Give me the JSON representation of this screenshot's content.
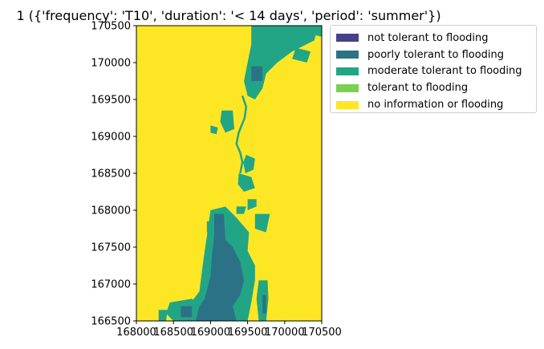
{
  "chart_data": {
    "type": "heatmap",
    "title": "1 ({'frequency': 'T10', 'duration': '< 14 days', 'period': 'summer'})",
    "xlabel": "",
    "ylabel": "",
    "xlim": [
      168000,
      170500
    ],
    "ylim": [
      166500,
      170500
    ],
    "xticks": [
      "168000",
      "168500",
      "169000",
      "169500",
      "170000",
      "170500"
    ],
    "yticks": [
      "170500",
      "170000",
      "169500",
      "169000",
      "168500",
      "168000",
      "167500",
      "167000",
      "166500"
    ],
    "grid": false,
    "legend_position": "outside-top-right",
    "categories": [
      {
        "label": "not tolerant to flooding",
        "color": "#46428a"
      },
      {
        "label": "poorly tolerant to flooding",
        "color": "#2c7286"
      },
      {
        "label": "moderate tolerant to flooding",
        "color": "#22a585"
      },
      {
        "label": "tolerant to flooding",
        "color": "#7ad151"
      },
      {
        "label": "no information or flooding",
        "color": "#fde725"
      }
    ],
    "regions": [
      {
        "category": 2,
        "points": [
          [
            169550,
            170500
          ],
          [
            170450,
            170500
          ],
          [
            170400,
            170300
          ],
          [
            170100,
            170150
          ],
          [
            169900,
            170000
          ],
          [
            169750,
            169850
          ],
          [
            169700,
            169650
          ],
          [
            169600,
            169500
          ],
          [
            169500,
            169550
          ],
          [
            169450,
            169750
          ],
          [
            169500,
            170000
          ],
          [
            169550,
            170250
          ]
        ]
      },
      {
        "category": 1,
        "points": [
          [
            169550,
            169950
          ],
          [
            169700,
            169950
          ],
          [
            169700,
            169750
          ],
          [
            169550,
            169750
          ]
        ]
      },
      {
        "category": 2,
        "points": [
          [
            170150,
            170200
          ],
          [
            170350,
            170150
          ],
          [
            170300,
            170000
          ],
          [
            170100,
            170050
          ]
        ]
      },
      {
        "category": 2,
        "points": [
          [
            170250,
            170500
          ],
          [
            170500,
            170500
          ],
          [
            170500,
            170350
          ],
          [
            170300,
            170400
          ]
        ]
      },
      {
        "category": 2,
        "points": [
          [
            169150,
            169350
          ],
          [
            169300,
            169350
          ],
          [
            169320,
            169100
          ],
          [
            169200,
            169050
          ],
          [
            169130,
            169200
          ]
        ]
      },
      {
        "category": 2,
        "points": [
          [
            169000,
            169150
          ],
          [
            169100,
            169120
          ],
          [
            169080,
            169030
          ],
          [
            169000,
            169050
          ]
        ]
      },
      {
        "category": 2,
        "points": [
          [
            169480,
            168750
          ],
          [
            169600,
            168700
          ],
          [
            169580,
            168550
          ],
          [
            169470,
            168500
          ],
          [
            169440,
            168650
          ]
        ]
      },
      {
        "category": 2,
        "points": [
          [
            169380,
            168500
          ],
          [
            169550,
            168450
          ],
          [
            169600,
            168300
          ],
          [
            169450,
            168250
          ],
          [
            169370,
            168350
          ]
        ]
      },
      {
        "category": 2,
        "points": [
          [
            169500,
            168150
          ],
          [
            169620,
            168150
          ],
          [
            169620,
            168050
          ],
          [
            169500,
            168000
          ]
        ]
      },
      {
        "category": 2,
        "points": [
          [
            169350,
            168050
          ],
          [
            169480,
            168050
          ],
          [
            169450,
            167950
          ],
          [
            169350,
            167950
          ]
        ]
      },
      {
        "category": 2,
        "points": [
          [
            169600,
            167950
          ],
          [
            169800,
            167950
          ],
          [
            169750,
            167700
          ],
          [
            169600,
            167750
          ]
        ]
      },
      {
        "category": 2,
        "points": [
          [
            169000,
            168000
          ],
          [
            169200,
            168050
          ],
          [
            169350,
            167900
          ],
          [
            169520,
            167700
          ],
          [
            169500,
            167450
          ],
          [
            169600,
            167250
          ],
          [
            169600,
            167050
          ],
          [
            169550,
            166750
          ],
          [
            169500,
            166500
          ],
          [
            168800,
            166500
          ],
          [
            168700,
            166700
          ],
          [
            168850,
            166900
          ],
          [
            168900,
            167300
          ],
          [
            168950,
            167650
          ]
        ]
      },
      {
        "category": 1,
        "points": [
          [
            169050,
            167950
          ],
          [
            169180,
            167950
          ],
          [
            169200,
            167600
          ],
          [
            169300,
            167500
          ],
          [
            169400,
            167300
          ],
          [
            169450,
            167050
          ],
          [
            169400,
            166850
          ],
          [
            169300,
            166700
          ],
          [
            169350,
            166500
          ],
          [
            168800,
            166500
          ],
          [
            168820,
            166650
          ],
          [
            168920,
            166800
          ],
          [
            169000,
            167100
          ],
          [
            169020,
            167400
          ],
          [
            169050,
            167650
          ]
        ]
      },
      {
        "category": 2,
        "points": [
          [
            169650,
            167050
          ],
          [
            169770,
            167050
          ],
          [
            169780,
            166800
          ],
          [
            169750,
            166500
          ],
          [
            169650,
            166500
          ],
          [
            169620,
            166800
          ]
        ]
      },
      {
        "category": 1,
        "points": [
          [
            169700,
            166850
          ],
          [
            169750,
            166850
          ],
          [
            169750,
            166600
          ],
          [
            169700,
            166600
          ]
        ]
      },
      {
        "category": 2,
        "points": [
          [
            168450,
            166750
          ],
          [
            168750,
            166800
          ],
          [
            168850,
            166700
          ],
          [
            168800,
            166500
          ],
          [
            168500,
            166500
          ],
          [
            168400,
            166600
          ]
        ]
      },
      {
        "category": 1,
        "points": [
          [
            168600,
            166700
          ],
          [
            168750,
            166700
          ],
          [
            168750,
            166550
          ],
          [
            168600,
            166550
          ]
        ]
      },
      {
        "category": 2,
        "points": [
          [
            168300,
            166650
          ],
          [
            168420,
            166650
          ],
          [
            168400,
            166500
          ],
          [
            168300,
            166500
          ]
        ]
      },
      {
        "category": 2,
        "points": [
          [
            168950,
            167850
          ],
          [
            169050,
            167850
          ],
          [
            169050,
            167700
          ],
          [
            168950,
            167700
          ]
        ]
      }
    ],
    "stream_path": [
      [
        169430,
        169550
      ],
      [
        169480,
        169400
      ],
      [
        169460,
        169250
      ],
      [
        169380,
        169050
      ],
      [
        169350,
        168900
      ],
      [
        169400,
        168780
      ],
      [
        169430,
        168650
      ],
      [
        169400,
        168500
      ]
    ]
  }
}
